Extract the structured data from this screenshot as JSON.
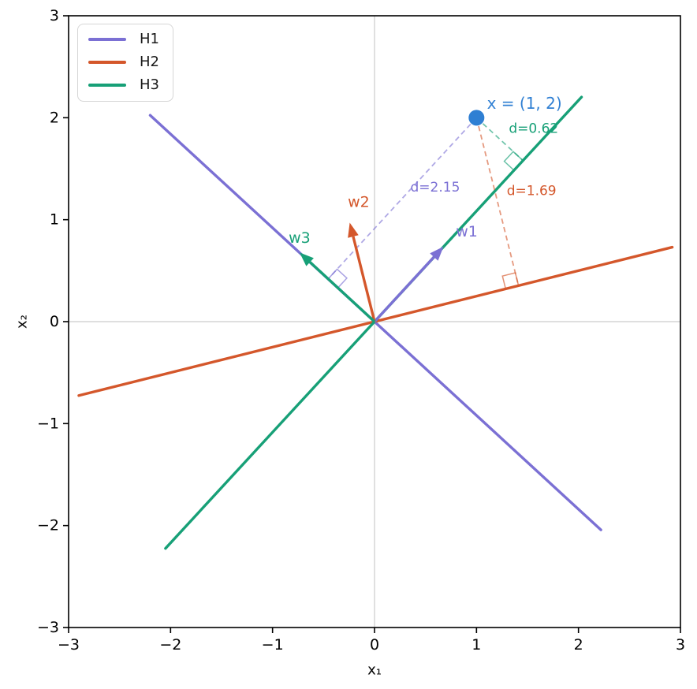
{
  "chart_data": {
    "type": "line",
    "title": "",
    "xlabel": "x₁",
    "ylabel": "x₂",
    "xlim": [
      -3,
      3
    ],
    "ylim": [
      -3,
      3
    ],
    "xticks": [
      -3,
      -2,
      -1,
      0,
      1,
      2,
      3
    ],
    "yticks": [
      -3,
      -2,
      -1,
      0,
      1,
      2,
      3
    ],
    "grid": false,
    "zero_lines": {
      "color": "#cccccc"
    },
    "axis_color": "#000000",
    "legend": {
      "position": "upper-left",
      "entries": [
        {
          "label": "H1",
          "color": "#7b70d4"
        },
        {
          "label": "H2",
          "color": "#d4572b"
        },
        {
          "label": "H3",
          "color": "#17a077"
        }
      ]
    },
    "hyperplanes": [
      {
        "name": "H1",
        "color": "#7b70d4",
        "slope": -0.92,
        "x_range": [
          -2.2,
          2.22
        ]
      },
      {
        "name": "H2",
        "color": "#d4572b",
        "slope": 0.25,
        "x_range": [
          -2.9,
          2.92
        ]
      },
      {
        "name": "H3",
        "color": "#17a077",
        "slope": 1.085,
        "x_range": [
          -2.05,
          2.03
        ]
      }
    ],
    "weight_vectors": [
      {
        "name": "w1",
        "label": "w1",
        "color": "#7b70d4",
        "vector": [
          0.677,
          0.736
        ],
        "label_pos": [
          0.905,
          0.88
        ]
      },
      {
        "name": "w2",
        "label": "w2",
        "color": "#d4572b",
        "vector": [
          -0.243,
          0.97
        ],
        "label_pos": [
          -0.155,
          1.17
        ]
      },
      {
        "name": "w3",
        "label": "w3",
        "color": "#17a077",
        "vector": [
          -0.735,
          0.678
        ],
        "label_pos": [
          -0.735,
          0.82
        ]
      }
    ],
    "point": {
      "x": 1,
      "y": 2,
      "color": "#2f7fd3",
      "label": "x = (1, 2)",
      "label_pos": [
        1.47,
        2.14
      ]
    },
    "distances": [
      {
        "hyperplane": "H1",
        "label": "d=2.15",
        "value": 2.15,
        "color": "#7b70d4",
        "foot": [
          -0.455,
          0.419
        ],
        "label_pos": [
          0.595,
          1.315
        ]
      },
      {
        "hyperplane": "H2",
        "label": "d=1.69",
        "value": 1.69,
        "color": "#d4572b",
        "foot": [
          1.412,
          0.353
        ],
        "label_pos": [
          1.54,
          1.28
        ]
      },
      {
        "hyperplane": "H3",
        "label": "d=0.62",
        "value": 0.62,
        "color": "#17a077",
        "foot": [
          1.456,
          1.58
        ],
        "label_pos": [
          1.56,
          1.89
        ]
      }
    ],
    "right_angle_size": 0.13
  }
}
